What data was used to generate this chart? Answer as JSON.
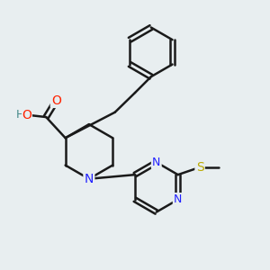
{
  "background_color": "#e8eef0",
  "line_color": "#1a1a1a",
  "line_width": 1.8,
  "atom_colors": {
    "O": "#ff2200",
    "N": "#2222ff",
    "S": "#bbaa00",
    "H": "#448888",
    "C": "#1a1a1a"
  },
  "font_size": 9
}
